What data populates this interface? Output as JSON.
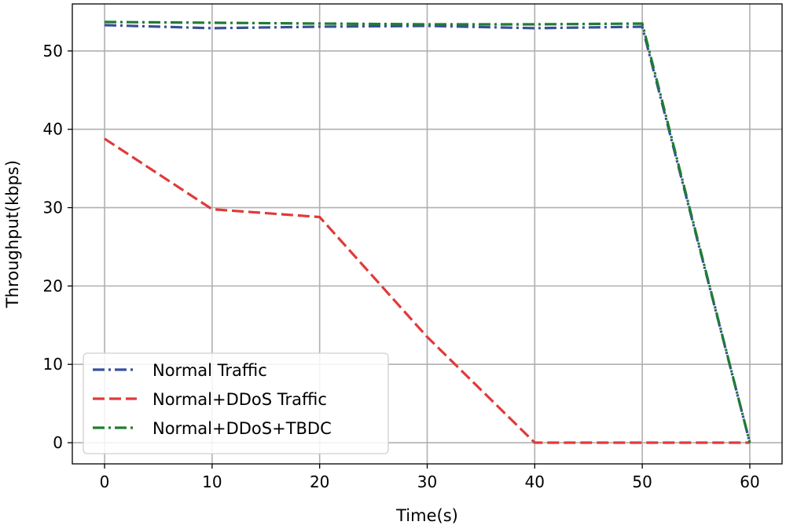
{
  "chart_data": {
    "type": "line",
    "xlabel": "Time(s)",
    "ylabel": "Throughput(kbps)",
    "xlim": [
      -3,
      63
    ],
    "ylim": [
      -2.7,
      56
    ],
    "xticks": [
      0,
      10,
      20,
      30,
      40,
      50,
      60
    ],
    "yticks": [
      0,
      10,
      20,
      30,
      40,
      50
    ],
    "grid": true,
    "legend_position": "lower-left",
    "series": [
      {
        "name": "Normal Traffic",
        "color": "#3a4f9a",
        "dash": "dashdot",
        "x": [
          0,
          10,
          20,
          30,
          40,
          50,
          60
        ],
        "y": [
          53.3,
          52.9,
          53.1,
          53.2,
          52.9,
          53.1,
          0
        ]
      },
      {
        "name": "Normal+DDoS Traffic",
        "color": "#e03a3a",
        "dash": "dashed",
        "x": [
          0,
          10,
          20,
          30,
          40,
          50,
          60
        ],
        "y": [
          38.8,
          29.8,
          28.8,
          13.5,
          0,
          0,
          0
        ]
      },
      {
        "name": "Normal+DDoS+TBDC",
        "color": "#1e7d32",
        "dash": "dashdot",
        "x": [
          0,
          10,
          20,
          30,
          40,
          50,
          60
        ],
        "y": [
          53.7,
          53.6,
          53.5,
          53.4,
          53.4,
          53.5,
          0
        ]
      }
    ]
  }
}
